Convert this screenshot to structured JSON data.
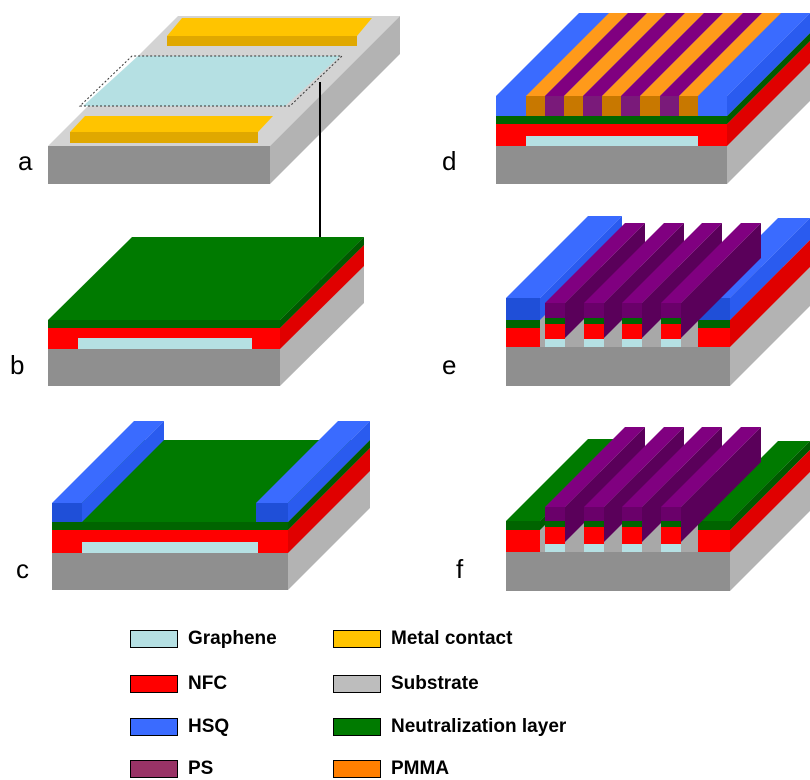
{
  "panels": [
    {
      "id": "a",
      "label": "a"
    },
    {
      "id": "b",
      "label": "b"
    },
    {
      "id": "c",
      "label": "c"
    },
    {
      "id": "d",
      "label": "d"
    },
    {
      "id": "e",
      "label": "e"
    },
    {
      "id": "f",
      "label": "f"
    }
  ],
  "legend": [
    {
      "key": "graphene",
      "label": "Graphene",
      "color": "#B5E0E3"
    },
    {
      "key": "metal",
      "label": "Metal contact",
      "color": "#FFC400"
    },
    {
      "key": "nfc",
      "label": "NFC",
      "color": "#FF0000"
    },
    {
      "key": "substrate",
      "label": "Substrate",
      "color": "#BDBDBD"
    },
    {
      "key": "hsq",
      "label": "HSQ",
      "color": "#3A6BFF"
    },
    {
      "key": "neutral",
      "label": "Neutralization layer",
      "color": "#007A00"
    },
    {
      "key": "ps",
      "label": "PS",
      "color": "#993366"
    },
    {
      "key": "pmma",
      "label": "PMMA",
      "color": "#FF7F00"
    }
  ]
}
